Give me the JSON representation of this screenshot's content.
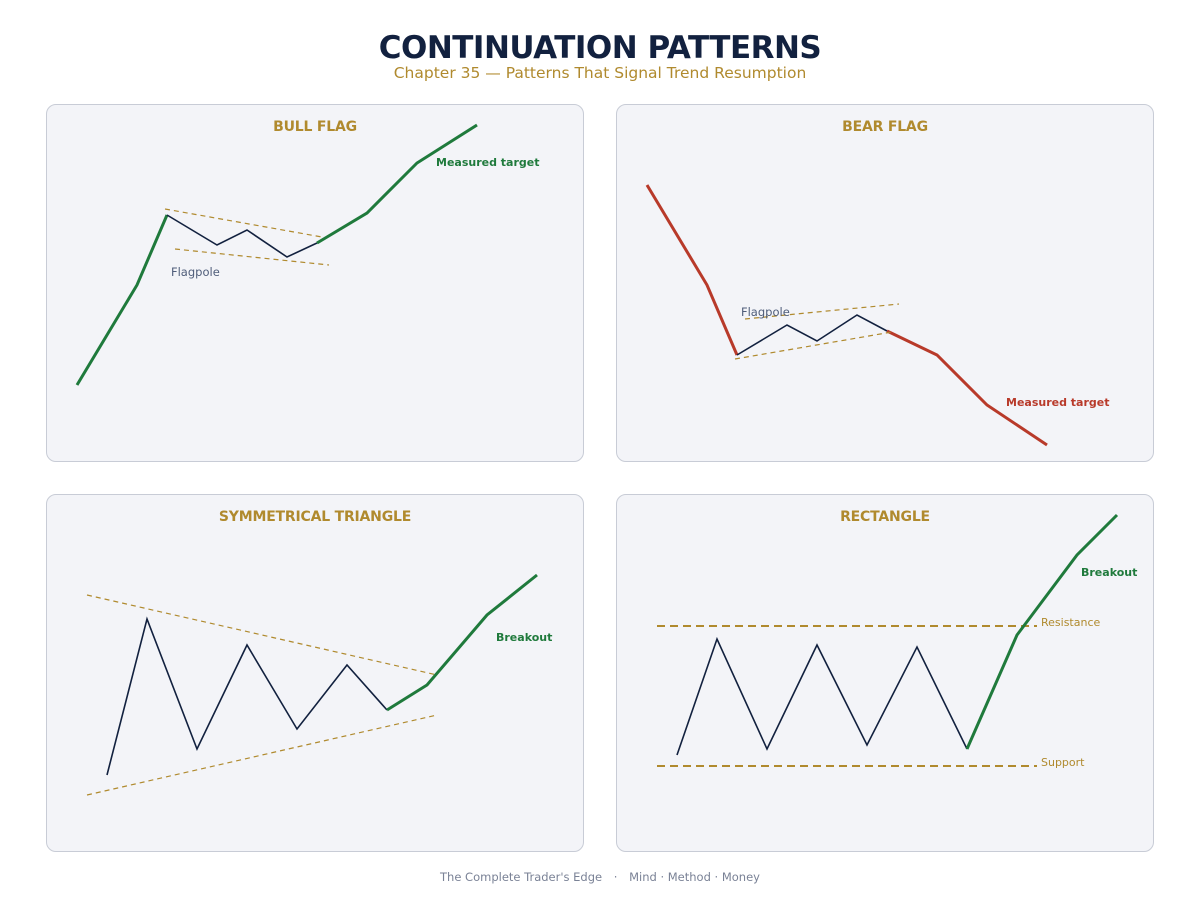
{
  "header": {
    "title": "CONTINUATION PATTERNS",
    "subtitle": "Chapter 35 — Patterns That Signal Trend Resumption"
  },
  "colors": {
    "navy": "#12213f",
    "gold": "#b08a2e",
    "green": "#1f7a3c",
    "red": "#b83a2a",
    "slate": "#4f5d7a",
    "panel_bg": "#f3f4f8"
  },
  "panels": [
    {
      "title": "BULL FLAG",
      "labels": {
        "pole": "Flagpole",
        "target": "Measured target"
      }
    },
    {
      "title": "BEAR FLAG",
      "labels": {
        "pole": "Flagpole",
        "target": "Measured target"
      }
    },
    {
      "title": "SYMMETRICAL TRIANGLE",
      "labels": {
        "breakout": "Breakout"
      }
    },
    {
      "title": "RECTANGLE",
      "labels": {
        "breakout": "Breakout",
        "resistance": "Resistance",
        "support": "Support"
      }
    }
  ],
  "footer": {
    "left": "The Complete Trader's Edge",
    "separator": "·",
    "right": "Mind · Method · Money"
  }
}
